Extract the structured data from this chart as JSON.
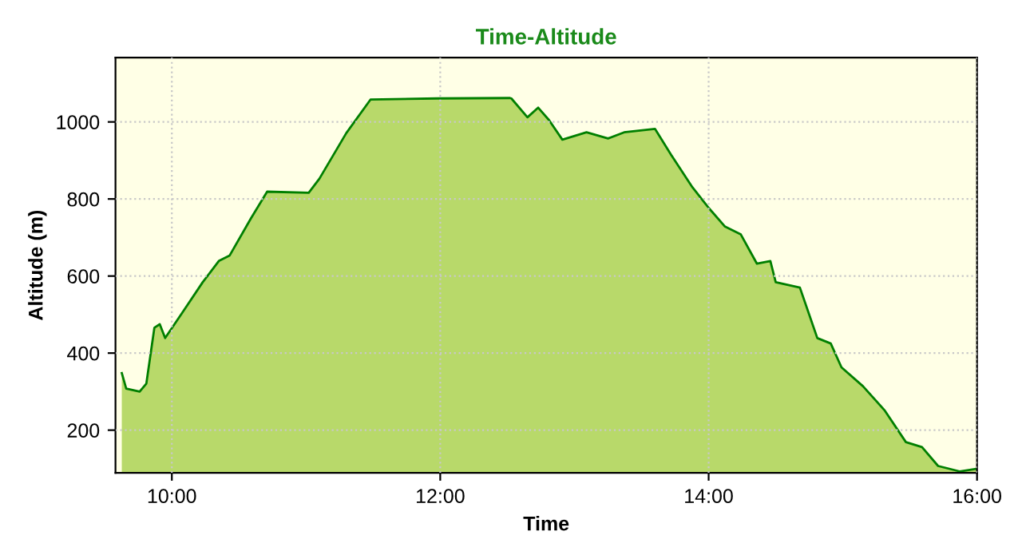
{
  "chart_data": {
    "type": "area",
    "title": "Time-Altitude",
    "xlabel": "Time",
    "ylabel": "Altitude (m)",
    "x": [
      9.627,
      9.66,
      9.76,
      9.81,
      9.87,
      9.91,
      9.95,
      10.07,
      10.23,
      10.35,
      10.43,
      10.59,
      10.71,
      11.02,
      11.1,
      11.3,
      11.48,
      11.98,
      12.52,
      12.53,
      12.65,
      12.73,
      12.81,
      12.91,
      13.09,
      13.25,
      13.37,
      13.6,
      13.72,
      13.88,
      14.0,
      14.12,
      14.24,
      14.36,
      14.46,
      14.5,
      14.68,
      14.81,
      14.91,
      14.99,
      15.15,
      15.31,
      15.47,
      15.59,
      15.71,
      15.87,
      16.0
    ],
    "series": [
      {
        "color": "#007f00",
        "values": [
          348,
          308,
          300,
          321,
          466,
          475,
          439,
          501,
          584,
          639,
          653,
          750,
          819,
          816,
          853,
          971,
          1058,
          1061,
          1062,
          1061,
          1012,
          1037,
          1005,
          954,
          973,
          957,
          973,
          982,
          915,
          830,
          777,
          729,
          708,
          632,
          639,
          584,
          570,
          439,
          425,
          363,
          314,
          252,
          169,
          156,
          107,
          93,
          100
        ]
      }
    ],
    "xlim": [
      9.58,
      16.0
    ],
    "xticks": [
      {
        "value": 10,
        "label": "10:00"
      },
      {
        "value": 12,
        "label": "12:00"
      },
      {
        "value": 14,
        "label": "14:00"
      },
      {
        "value": 16,
        "label": "16:00"
      }
    ],
    "ylim": [
      89,
      1167
    ],
    "yticks": [
      200,
      400,
      600,
      800,
      1000
    ],
    "grid": true,
    "line_style": "solid"
  }
}
